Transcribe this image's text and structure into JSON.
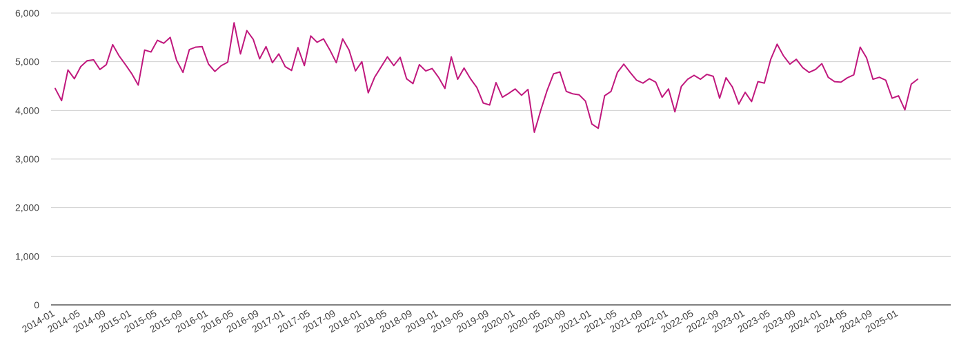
{
  "chart_data": {
    "type": "line",
    "title": "",
    "xlabel": "",
    "ylabel": "",
    "ylim": [
      0,
      6000
    ],
    "grid": true,
    "legend": "none",
    "line_color": "#c0187d",
    "y_ticks": [
      {
        "value": 0,
        "label": "0"
      },
      {
        "value": 1000,
        "label": "1,000"
      },
      {
        "value": 2000,
        "label": "2,000"
      },
      {
        "value": 3000,
        "label": "3,000"
      },
      {
        "value": 4000,
        "label": "4,000"
      },
      {
        "value": 5000,
        "label": "5,000"
      },
      {
        "value": 6000,
        "label": "6,000"
      }
    ],
    "x_ticks": [
      "2014-01",
      "2014-05",
      "2014-09",
      "2015-01",
      "2015-05",
      "2015-09",
      "2016-01",
      "2016-05",
      "2016-09",
      "2017-01",
      "2017-05",
      "2017-09",
      "2018-01",
      "2018-05",
      "2018-09",
      "2019-01",
      "2019-05",
      "2019-09",
      "2020-01",
      "2020-05",
      "2020-09",
      "2021-01",
      "2021-05",
      "2021-09",
      "2022-01",
      "2022-05",
      "2022-09",
      "2023-01",
      "2023-05",
      "2023-09",
      "2024-01",
      "2024-05",
      "2024-09",
      "2025-01"
    ],
    "start_month": "2014-01",
    "series": [
      {
        "values": [
          4450,
          4200,
          4830,
          4650,
          4900,
          5020,
          5040,
          4840,
          4940,
          5350,
          5120,
          4940,
          4750,
          4520,
          5240,
          5200,
          5440,
          5380,
          5500,
          5030,
          4780,
          5250,
          5300,
          5310,
          4950,
          4800,
          4920,
          4990,
          5800,
          5160,
          5640,
          5460,
          5060,
          5310,
          4980,
          5160,
          4900,
          4820,
          5290,
          4920,
          5530,
          5400,
          5470,
          5240,
          4980,
          5470,
          5240,
          4810,
          5000,
          4360,
          4680,
          4890,
          5100,
          4920,
          5090,
          4650,
          4550,
          4940,
          4810,
          4860,
          4680,
          4450,
          5100,
          4640,
          4870,
          4650,
          4470,
          4150,
          4110,
          4570,
          4270,
          4350,
          4440,
          4310,
          4430,
          3550,
          4000,
          4410,
          4750,
          4790,
          4390,
          4340,
          4320,
          4190,
          3720,
          3630,
          4300,
          4390,
          4780,
          4950,
          4780,
          4620,
          4560,
          4650,
          4580,
          4270,
          4440,
          3970,
          4490,
          4640,
          4720,
          4640,
          4740,
          4700,
          4250,
          4670,
          4480,
          4130,
          4370,
          4180,
          4590,
          4560,
          5050,
          5360,
          5120,
          4950,
          5050,
          4880,
          4780,
          4840,
          4960,
          4680,
          4590,
          4580,
          4670,
          4730,
          5300,
          5080,
          4640,
          4680,
          4620,
          4250,
          4300,
          4010,
          4540,
          4640
        ],
        "x": [
          "2014-01",
          "2014-02",
          "2014-03",
          "2014-04",
          "2014-05",
          "2014-06",
          "2014-07",
          "2014-08",
          "2014-09",
          "2014-10",
          "2014-11",
          "2014-12",
          "2015-01",
          "2015-02",
          "2015-03",
          "2015-04",
          "2015-05",
          "2015-06",
          "2015-07",
          "2015-08",
          "2015-09",
          "2015-10",
          "2015-11",
          "2015-12",
          "2016-01",
          "2016-02",
          "2016-03",
          "2016-04",
          "2016-05",
          "2016-06",
          "2016-07",
          "2016-08",
          "2016-09",
          "2016-10",
          "2016-11",
          "2016-12",
          "2017-01",
          "2017-02",
          "2017-03",
          "2017-04",
          "2017-05",
          "2017-06",
          "2017-07",
          "2017-08",
          "2017-09",
          "2017-10",
          "2017-11",
          "2017-12",
          "2018-01",
          "2018-02",
          "2018-03",
          "2018-04",
          "2018-05",
          "2018-06",
          "2018-07",
          "2018-08",
          "2018-09",
          "2018-10",
          "2018-11",
          "2018-12",
          "2019-01",
          "2019-02",
          "2019-03",
          "2019-04",
          "2019-05",
          "2019-06",
          "2019-07",
          "2019-08",
          "2019-09",
          "2019-10",
          "2019-11",
          "2019-12",
          "2020-01",
          "2020-02",
          "2020-03",
          "2020-04",
          "2020-05",
          "2020-06",
          "2020-07",
          "2020-08",
          "2020-09",
          "2020-10",
          "2020-11",
          "2020-12",
          "2021-01",
          "2021-02",
          "2021-03",
          "2021-04",
          "2021-05",
          "2021-06",
          "2021-07",
          "2021-08",
          "2021-09",
          "2021-10",
          "2021-11",
          "2021-12",
          "2022-01",
          "2022-02",
          "2022-03",
          "2022-04",
          "2022-05",
          "2022-06",
          "2022-07",
          "2022-08",
          "2022-09",
          "2022-10",
          "2022-11",
          "2022-12",
          "2023-01",
          "2023-02",
          "2023-03",
          "2023-04",
          "2023-05",
          "2023-06",
          "2023-07",
          "2023-08",
          "2023-09",
          "2023-10",
          "2023-11",
          "2023-12",
          "2024-01",
          "2024-02",
          "2024-03",
          "2024-04",
          "2024-05",
          "2024-06",
          "2024-07",
          "2024-08",
          "2024-09",
          "2024-10",
          "2024-11",
          "2024-12",
          "2025-01",
          "2025-02",
          "2025-03",
          "2025-04"
        ]
      }
    ]
  }
}
